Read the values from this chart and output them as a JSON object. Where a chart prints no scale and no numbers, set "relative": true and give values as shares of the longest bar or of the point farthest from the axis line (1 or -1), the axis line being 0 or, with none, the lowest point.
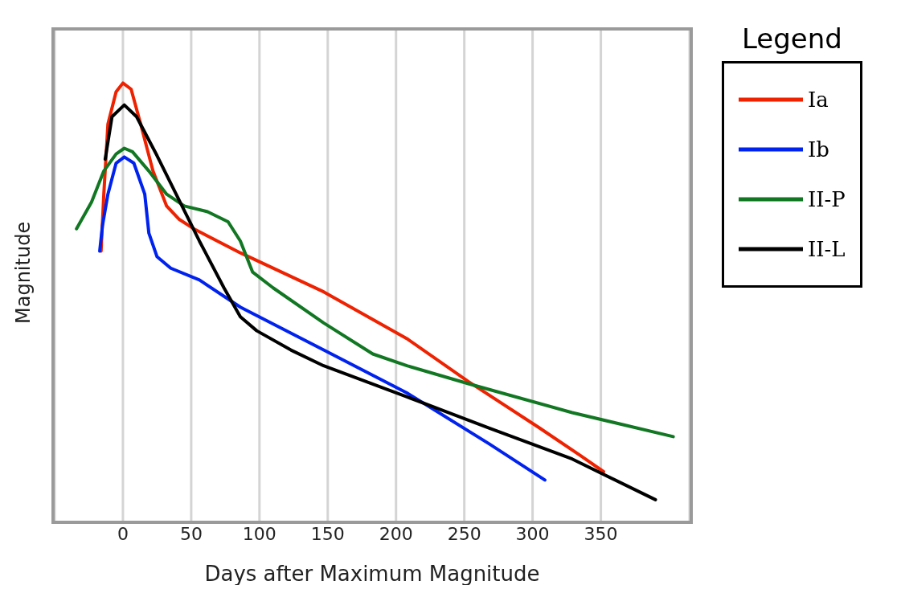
{
  "chart_data": {
    "type": "line",
    "xlabel": "Days after Maximum Magnitude",
    "ylabel": "Magnitude",
    "legend_title": "Legend",
    "relative": true,
    "xlim": [
      -50,
      415
    ],
    "xticks": [
      0,
      50,
      100,
      150,
      200,
      250,
      300,
      350
    ],
    "grid": "x",
    "legend": "top right",
    "marker": "none",
    "line_style": "solid",
    "series": [
      {
        "name": "Ia",
        "color": "#ee2200",
        "x": [
          -16,
          -14,
          -11,
          -5,
          0,
          6,
          13,
          22,
          32,
          41,
          53,
          86,
          147,
          208,
          253,
          305,
          335,
          352
        ],
        "values": [
          0.616,
          0.746,
          0.906,
          0.98,
          1.0,
          0.986,
          0.906,
          0.799,
          0.719,
          0.689,
          0.665,
          0.612,
          0.523,
          0.416,
          0.318,
          0.212,
          0.149,
          0.112
        ]
      },
      {
        "name": "Ib",
        "color": "#0022ee",
        "x": [
          -17,
          -15,
          -11,
          -5,
          1,
          8,
          16,
          19,
          25,
          35,
          56,
          86,
          147,
          208,
          268,
          309
        ],
        "values": [
          0.616,
          0.674,
          0.746,
          0.817,
          0.831,
          0.817,
          0.746,
          0.657,
          0.603,
          0.577,
          0.55,
          0.488,
          0.39,
          0.292,
          0.176,
          0.093
        ]
      },
      {
        "name": "II-P",
        "color": "#117722",
        "x": [
          -34,
          -23,
          -14,
          -5,
          1,
          7,
          19,
          32,
          45,
          62,
          77,
          86,
          95,
          110,
          147,
          183,
          208,
          253,
          329,
          403
        ],
        "values": [
          0.667,
          0.728,
          0.799,
          0.838,
          0.851,
          0.843,
          0.799,
          0.746,
          0.719,
          0.706,
          0.683,
          0.639,
          0.568,
          0.532,
          0.452,
          0.381,
          0.354,
          0.313,
          0.247,
          0.192
        ]
      },
      {
        "name": "II-L",
        "color": "#000000",
        "x": [
          -13,
          -8,
          1,
          10,
          25,
          56,
          74,
          86,
          98,
          123,
          147,
          208,
          268,
          329,
          390
        ],
        "values": [
          0.826,
          0.923,
          0.95,
          0.923,
          0.834,
          0.639,
          0.532,
          0.466,
          0.434,
          0.39,
          0.354,
          0.283,
          0.212,
          0.141,
          0.048
        ]
      }
    ]
  }
}
